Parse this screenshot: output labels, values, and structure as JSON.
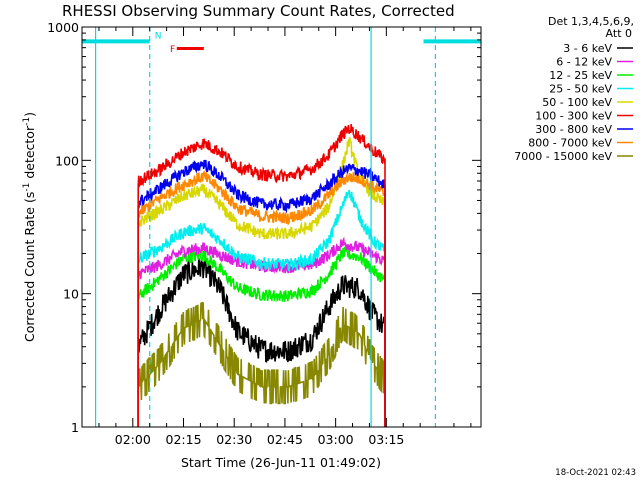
{
  "chart_data": {
    "type": "line",
    "title": "RHESSI Observing Summary Count Rates, Corrected",
    "xlabel": "Start Time (26-Jun-11 01:49:02)",
    "ylabel_prefix": "Corrected Count Rate (s",
    "ylabel_sup": "-1",
    "ylabel_mid": " detector",
    "ylabel_sup2": "-1",
    "ylabel_suffix": ")",
    "yscale": "log",
    "ylim": [
      1,
      1000
    ],
    "xlim_minutes": [
      -15.03,
      103.0
    ],
    "x_unit": "minutes since 02:00 UT",
    "x_ticks": [
      {
        "minute": 0,
        "label": "02:00"
      },
      {
        "minute": 15,
        "label": "02:15"
      },
      {
        "minute": 30,
        "label": "02:30"
      },
      {
        "minute": 45,
        "label": "02:45"
      },
      {
        "minute": 60,
        "label": "03:00"
      },
      {
        "minute": 75,
        "label": "03:15"
      }
    ],
    "y_ticks": [
      {
        "value": 1,
        "label": "1"
      },
      {
        "value": 10,
        "label": "10"
      },
      {
        "value": 100,
        "label": "100"
      },
      {
        "value": 1000,
        "label": "1000"
      }
    ],
    "data_range_minutes": [
      1.6,
      74.6
    ],
    "legend_header": [
      "Det 1,3,4,5,6,9,",
      "Att 0"
    ],
    "series": [
      {
        "name": "3 - 6 keV",
        "color": "#000000",
        "x": [
          1.6,
          8,
          15,
          21,
          26,
          31,
          38,
          46,
          53,
          58,
          62,
          67,
          71,
          74.6
        ],
        "y": [
          4.0,
          7.5,
          14.0,
          16.0,
          10.5,
          5.2,
          3.8,
          3.7,
          4.6,
          8.0,
          11.5,
          11.0,
          7.0,
          5.5
        ]
      },
      {
        "name": "6 - 12 keV",
        "color": "#e020e0",
        "x": [
          1.6,
          8,
          15,
          21,
          26,
          31,
          38,
          46,
          53,
          58,
          62,
          67,
          71,
          74.6
        ],
        "y": [
          14.0,
          16.5,
          21.0,
          22.0,
          19.5,
          17.5,
          16.0,
          15.8,
          16.5,
          19.5,
          24.0,
          22.0,
          19.5,
          17.5
        ]
      },
      {
        "name": "12 - 25 keV",
        "color": "#00ee00",
        "x": [
          1.6,
          8,
          15,
          21,
          26,
          31,
          38,
          46,
          53,
          58,
          62,
          67,
          71,
          74.6
        ],
        "y": [
          9.5,
          13.0,
          18.5,
          19.5,
          15.0,
          11.0,
          9.8,
          9.6,
          10.5,
          14.0,
          20.0,
          19.0,
          15.0,
          12.5
        ]
      },
      {
        "name": "25 - 50 keV",
        "color": "#00eeee",
        "x": [
          1.6,
          8,
          15,
          21,
          26,
          31,
          38,
          46,
          53,
          58,
          62,
          64,
          67,
          71,
          74.6
        ],
        "y": [
          18.0,
          22.0,
          29.0,
          31.0,
          25.0,
          19.0,
          17.0,
          16.5,
          18.0,
          25.0,
          45.0,
          60.0,
          38.0,
          25.0,
          21.0
        ]
      },
      {
        "name": "50 - 100 keV",
        "color": "#d8d800",
        "x": [
          1.6,
          8,
          15,
          21,
          26,
          31,
          38,
          46,
          53,
          58,
          62,
          64,
          67,
          71,
          74.6
        ],
        "y": [
          34.0,
          42.0,
          54.0,
          60.0,
          46.0,
          33.0,
          28.0,
          28.0,
          32.0,
          45.0,
          90.0,
          140.0,
          75.0,
          55.0,
          47.0
        ]
      },
      {
        "name": "100 - 300 keV",
        "color": "#ee0000",
        "x": [
          1.6,
          8,
          15,
          21,
          26,
          31,
          38,
          46,
          53,
          58,
          62,
          64,
          67,
          71,
          74.6
        ],
        "y": [
          70.0,
          85.0,
          115.0,
          135.0,
          115.0,
          90.0,
          78.0,
          76.0,
          86.0,
          110.0,
          155.0,
          175.0,
          150.0,
          120.0,
          100.0
        ]
      },
      {
        "name": "300 - 800 keV",
        "color": "#0000ee",
        "x": [
          1.6,
          8,
          15,
          21,
          26,
          31,
          38,
          46,
          53,
          58,
          62,
          64,
          67,
          71,
          74.6
        ],
        "y": [
          48.0,
          62.0,
          82.0,
          95.0,
          75.0,
          55.0,
          47.0,
          46.0,
          52.0,
          66.0,
          82.0,
          87.0,
          84.0,
          75.0,
          65.0
        ]
      },
      {
        "name": "800 - 7000 keV",
        "color": "#ff8800",
        "x": [
          1.6,
          8,
          15,
          21,
          26,
          31,
          38,
          46,
          53,
          58,
          62,
          64,
          67,
          71,
          74.6
        ],
        "y": [
          40.0,
          52.0,
          66.0,
          76.0,
          60.0,
          44.0,
          38.0,
          37.0,
          42.0,
          55.0,
          70.0,
          75.0,
          73.0,
          64.0,
          56.0
        ]
      },
      {
        "name": "7000 - 15000 keV",
        "color": "#888800",
        "x": [
          1.6,
          8,
          15,
          21,
          26,
          31,
          38,
          46,
          53,
          58,
          62,
          67,
          71,
          74.6
        ],
        "y": [
          2.0,
          3.0,
          5.5,
          6.5,
          4.0,
          2.5,
          2.0,
          2.0,
          2.3,
          3.5,
          6.0,
          5.0,
          3.0,
          2.3
        ]
      }
    ],
    "night_bars": [
      {
        "x0": -15.03,
        "x1": 5.0,
        "y": 780
      },
      {
        "x0": 86.0,
        "x1": 103.0,
        "y": 780
      }
    ],
    "day_night_lines": [
      {
        "minute": -11.0,
        "style": "solid"
      },
      {
        "minute": 5.0,
        "style": "dashed"
      },
      {
        "minute": 70.5,
        "style": "solid"
      },
      {
        "minute": 89.5,
        "style": "dashed"
      }
    ],
    "flag_labels": [
      {
        "text": "N",
        "color": "#00dddd",
        "minute": 6.5,
        "value": 820
      },
      {
        "text": "F",
        "color": "#ee0000",
        "minute": 11.0,
        "value": 650
      }
    ],
    "flare_bar": {
      "x0": 13.0,
      "x1": 21.0,
      "value": 690,
      "color": "#ee0000"
    },
    "night_color": "#00dddd"
  },
  "footer": {
    "timestamp": "18-Oct-2021 02:43"
  }
}
